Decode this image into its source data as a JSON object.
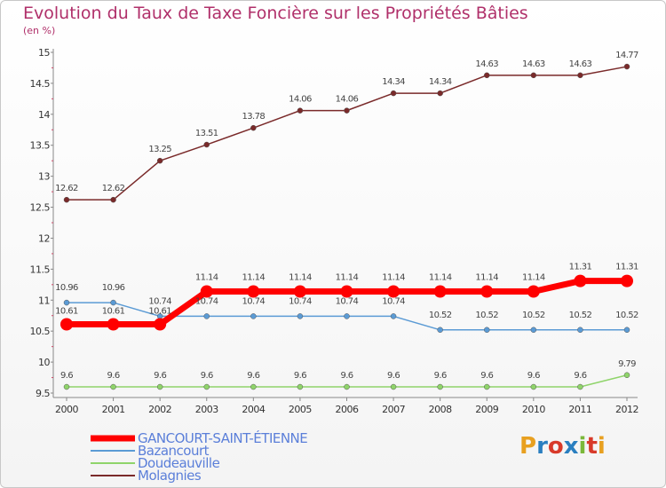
{
  "title": "Evolution du Taux de Taxe Foncière sur les Propriétés Bâties",
  "unit_label": "(en %)",
  "logo": {
    "text": "Proxiti",
    "colors": [
      "#e8a020",
      "#2a7fc0",
      "#d83a2a",
      "#2a7fc0",
      "#7bb83a",
      "#d83a2a",
      "#e8a020"
    ]
  },
  "chart_data": {
    "type": "line",
    "x": [
      "2000",
      "2001",
      "2002",
      "2003",
      "2004",
      "2005",
      "2006",
      "2007",
      "2008",
      "2009",
      "2010",
      "2011",
      "2012"
    ],
    "ylim": [
      9.5,
      15
    ],
    "yticks": [
      "9.5",
      "10",
      "10.5",
      "11",
      "11.5",
      "12",
      "12.5",
      "13",
      "13.5",
      "14",
      "14.5",
      "15"
    ],
    "grid": false,
    "legend_position": "bottom-left",
    "series": [
      {
        "name": "GANCOURT-SAINT-ÉTIENNE",
        "color": "#ff0000",
        "values": [
          10.61,
          10.61,
          10.61,
          11.14,
          11.14,
          11.14,
          11.14,
          11.14,
          11.14,
          11.14,
          11.14,
          11.31,
          11.31
        ],
        "labels": [
          "10.61",
          "10.61",
          "10.61",
          "11.14",
          "11.14",
          "11.14",
          "11.14",
          "11.14",
          "11.14",
          "11.14",
          "11.14",
          "11.31",
          "11.31"
        ]
      },
      {
        "name": "Bazancourt",
        "color": "#5b9bd5",
        "values": [
          10.96,
          10.96,
          10.74,
          10.74,
          10.74,
          10.74,
          10.74,
          10.74,
          10.52,
          10.52,
          10.52,
          10.52,
          10.52
        ],
        "labels": [
          "10.96",
          "10.96",
          "10.74",
          "10.74",
          "10.74",
          "10.74",
          "10.74",
          "10.74",
          "10.52",
          "10.52",
          "10.52",
          "10.52",
          "10.52"
        ]
      },
      {
        "name": "Doudeauville",
        "color": "#8fd46a",
        "values": [
          9.6,
          9.6,
          9.6,
          9.6,
          9.6,
          9.6,
          9.6,
          9.6,
          9.6,
          9.6,
          9.6,
          9.6,
          9.79
        ],
        "labels": [
          "9.6",
          "9.6",
          "9.6",
          "9.6",
          "9.6",
          "9.6",
          "9.6",
          "9.6",
          "9.6",
          "9.6",
          "9.6",
          "9.6",
          "9.79"
        ]
      },
      {
        "name": "Molagnies",
        "color": "#7a2a2a",
        "values": [
          12.62,
          12.62,
          13.25,
          13.51,
          13.78,
          14.06,
          14.06,
          14.34,
          14.34,
          14.63,
          14.63,
          14.63,
          14.77
        ],
        "labels": [
          "12.62",
          "12.62",
          "13.25",
          "13.51",
          "13.78",
          "14.06",
          "14.06",
          "14.34",
          "14.34",
          "14.63",
          "14.63",
          "14.63",
          "14.77"
        ]
      }
    ]
  }
}
